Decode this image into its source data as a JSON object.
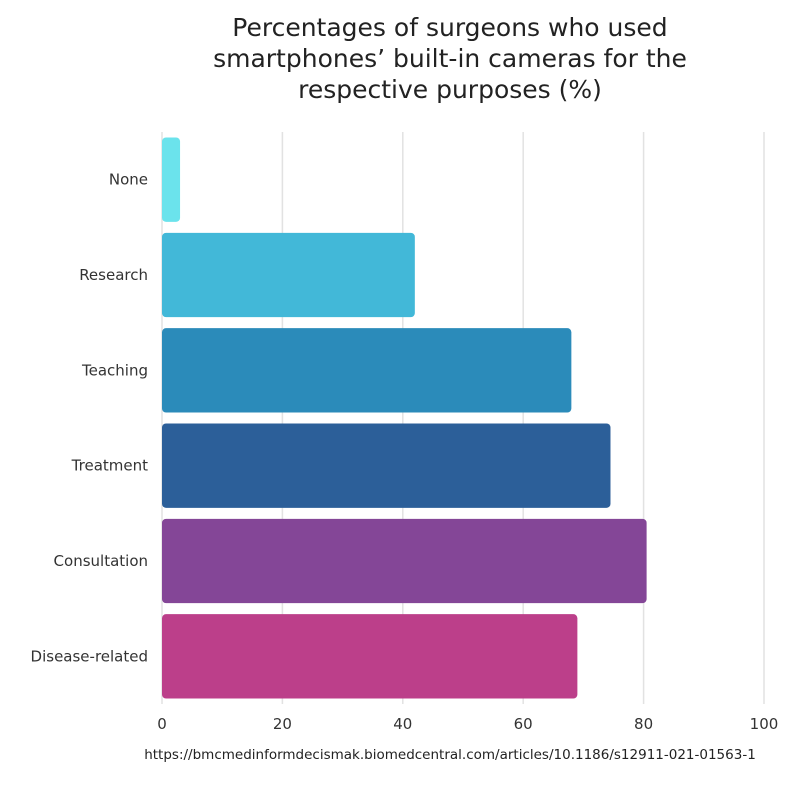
{
  "chart_data": {
    "type": "bar",
    "orientation": "horizontal",
    "title": "Percentages of surgeons who used smartphones’ built-in cameras for the respective purposes (%)",
    "source": "https://bmcmedinformdecismak.biomedcentral.com/articles/10.1186/s12911-021-01563-1",
    "categories": [
      "None",
      "Research",
      "Teaching",
      "Treatment",
      "Consultation",
      "Disease-related"
    ],
    "values": [
      3,
      42,
      68,
      74.5,
      80.5,
      69
    ],
    "colors": [
      "#6be3ec",
      "#42b8d8",
      "#2b8bba",
      "#2c5f99",
      "#844697",
      "#bc3f8a"
    ],
    "xlim": [
      0,
      100
    ],
    "xticks": [
      0,
      20,
      40,
      60,
      80,
      100
    ],
    "grid": true,
    "xlabel": "",
    "ylabel": ""
  }
}
